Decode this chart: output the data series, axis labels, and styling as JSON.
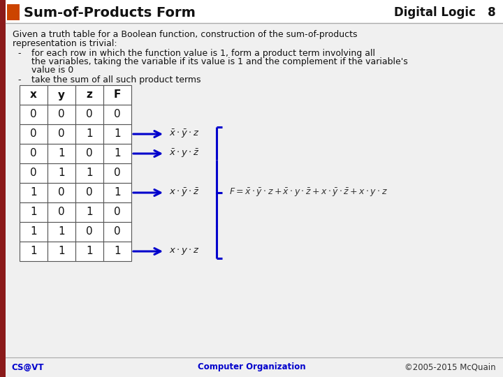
{
  "title": "Sum-of-Products Form",
  "header_right": "Digital Logic   8",
  "accent_color": "#cc4400",
  "blue_color": "#0000CC",
  "dark_color": "#111111",
  "gray_color": "#888888",
  "slide_bg": "#f0f0f0",
  "header_bg": "#ffffff",
  "table_bg": "#ffffff",
  "table_headers": [
    "x",
    "y",
    "z",
    "F"
  ],
  "table_data": [
    [
      0,
      0,
      0,
      0
    ],
    [
      0,
      0,
      1,
      1
    ],
    [
      0,
      1,
      0,
      1
    ],
    [
      0,
      1,
      1,
      0
    ],
    [
      1,
      0,
      0,
      1
    ],
    [
      1,
      0,
      1,
      0
    ],
    [
      1,
      1,
      0,
      0
    ],
    [
      1,
      1,
      1,
      1
    ]
  ],
  "footer_left": "CS@VT",
  "footer_center": "Computer Organization",
  "footer_right": "©2005-2015 McQuain",
  "body_line1": "Given a truth table for a Boolean function, construction of the sum-of-products",
  "body_line2": "representation is trivial:",
  "b1_line1": "for each row in which the function value is 1, form a product term involving all",
  "b1_line2": "the variables, taking the variable if its value is 1 and the complement if the variable's",
  "b1_line3": "value is 0",
  "b2_text": "take the sum of all such product terms"
}
